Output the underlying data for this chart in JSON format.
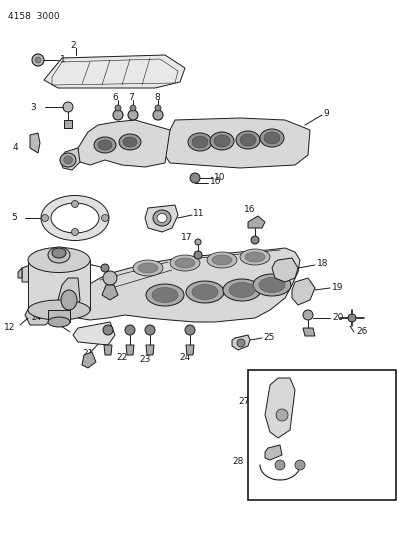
{
  "title": "4158  3000",
  "bg_color": "#ffffff",
  "line_color": "#1a1a1a",
  "gray_fill": "#d8d8d8",
  "dark_fill": "#888888",
  "light_fill": "#eeeeee"
}
